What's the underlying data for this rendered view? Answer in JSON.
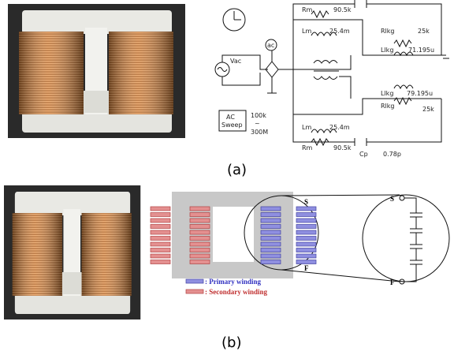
{
  "panel_a": {
    "circuit": {
      "labels": [
        "Rm",
        "90.5k",
        "Lm",
        "25.4m",
        "Rlkg",
        "25k",
        "Llkg",
        "71.195u",
        "Vac",
        "ac",
        "AC",
        "Sweep",
        "100k",
        "~",
        "300M",
        "Llkg",
        "79.195u",
        "Rlkg",
        "25k",
        "Lm",
        "25.4m",
        "Rm",
        "90.5k",
        "Cp",
        "0.78p"
      ]
    },
    "caption": "(a)"
  },
  "panel_b": {
    "core_labels": [
      "S",
      "F"
    ],
    "legend": [
      ": Primary winding",
      ": Secondary winding"
    ],
    "zoom_labels": [
      "S",
      "F"
    ],
    "caption": "(b)"
  }
}
